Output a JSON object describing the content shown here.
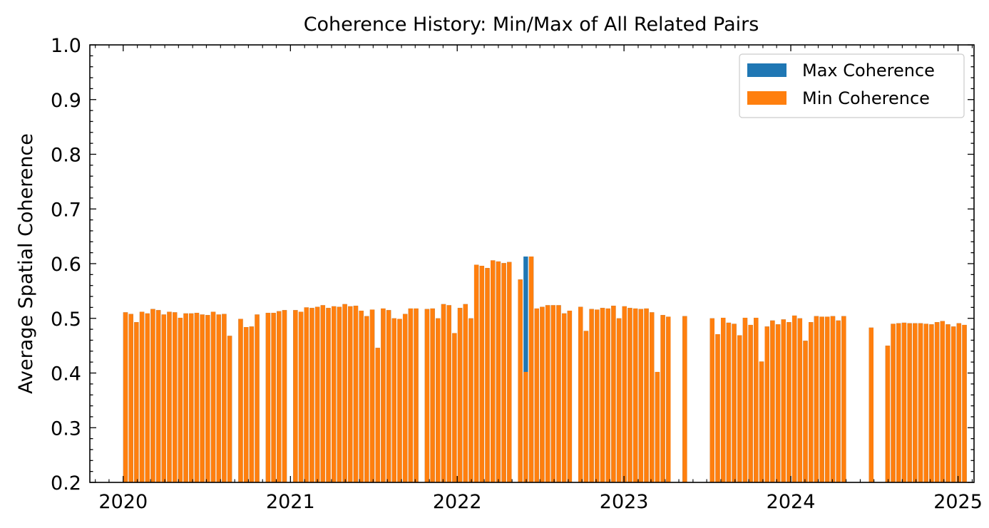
{
  "chart_data": {
    "type": "bar",
    "title": "Coherence History: Min/Max of All Related Pairs",
    "xlabel": "",
    "ylabel": "Average Spatial Coherence",
    "ylim": [
      0.2,
      1.0
    ],
    "xlim": [
      "2019-10-20",
      "2025-02-05"
    ],
    "yticks": [
      "0.2",
      "0.3",
      "0.4",
      "0.5",
      "0.6",
      "0.7",
      "0.8",
      "0.9",
      "1.0"
    ],
    "xticks": [
      {
        "label": "2020",
        "date": "2020-01-01"
      },
      {
        "label": "2021",
        "date": "2021-01-01"
      },
      {
        "label": "2022",
        "date": "2022-01-01"
      },
      {
        "label": "2023",
        "date": "2023-01-01"
      },
      {
        "label": "2024",
        "date": "2024-01-01"
      },
      {
        "label": "2025",
        "date": "2025-01-01"
      }
    ],
    "grid": false,
    "legend_position": "top-right",
    "series": [
      {
        "name": "Max Coherence",
        "color": "#1f77b4",
        "points": [
          [
            "2020-01-06",
            0.511
          ],
          [
            "2020-01-18",
            0.508
          ],
          [
            "2020-01-30",
            0.493
          ],
          [
            "2020-02-11",
            0.512
          ],
          [
            "2020-02-23",
            0.509
          ],
          [
            "2020-03-06",
            0.517
          ],
          [
            "2020-03-18",
            0.515
          ],
          [
            "2020-03-30",
            0.507
          ],
          [
            "2020-04-11",
            0.512
          ],
          [
            "2020-04-23",
            0.511
          ],
          [
            "2020-05-05",
            0.501
          ],
          [
            "2020-05-17",
            0.509
          ],
          [
            "2020-05-29",
            0.509
          ],
          [
            "2020-06-10",
            0.51
          ],
          [
            "2020-06-22",
            0.507
          ],
          [
            "2020-07-04",
            0.506
          ],
          [
            "2020-07-16",
            0.512
          ],
          [
            "2020-07-28",
            0.507
          ],
          [
            "2020-08-09",
            0.508
          ],
          [
            "2020-08-21",
            0.468
          ],
          [
            "2020-09-14",
            0.499
          ],
          [
            "2020-09-26",
            0.484
          ],
          [
            "2020-10-08",
            0.485
          ],
          [
            "2020-10-20",
            0.507
          ],
          [
            "2020-11-13",
            0.51
          ],
          [
            "2020-11-25",
            0.51
          ],
          [
            "2020-12-07",
            0.513
          ],
          [
            "2020-12-19",
            0.515
          ],
          [
            "2021-01-12",
            0.515
          ],
          [
            "2021-01-24",
            0.512
          ],
          [
            "2021-02-05",
            0.52
          ],
          [
            "2021-02-17",
            0.519
          ],
          [
            "2021-03-01",
            0.521
          ],
          [
            "2021-03-13",
            0.524
          ],
          [
            "2021-03-25",
            0.519
          ],
          [
            "2021-04-06",
            0.522
          ],
          [
            "2021-04-18",
            0.521
          ],
          [
            "2021-04-30",
            0.526
          ],
          [
            "2021-05-12",
            0.522
          ],
          [
            "2021-05-24",
            0.523
          ],
          [
            "2021-06-05",
            0.514
          ],
          [
            "2021-06-17",
            0.504
          ],
          [
            "2021-06-29",
            0.516
          ],
          [
            "2021-07-11",
            0.446
          ],
          [
            "2021-07-23",
            0.518
          ],
          [
            "2021-08-04",
            0.515
          ],
          [
            "2021-08-16",
            0.5
          ],
          [
            "2021-08-28",
            0.499
          ],
          [
            "2021-09-09",
            0.508
          ],
          [
            "2021-09-21",
            0.518
          ],
          [
            "2021-10-03",
            0.518
          ],
          [
            "2021-10-27",
            0.517
          ],
          [
            "2021-11-08",
            0.518
          ],
          [
            "2021-11-20",
            0.5
          ],
          [
            "2021-12-02",
            0.526
          ],
          [
            "2021-12-14",
            0.524
          ],
          [
            "2021-12-26",
            0.473
          ],
          [
            "2022-01-07",
            0.519
          ],
          [
            "2022-01-19",
            0.526
          ],
          [
            "2022-01-31",
            0.5
          ],
          [
            "2022-02-12",
            0.598
          ],
          [
            "2022-02-24",
            0.596
          ],
          [
            "2022-03-08",
            0.592
          ],
          [
            "2022-03-20",
            0.606
          ],
          [
            "2022-04-01",
            0.604
          ],
          [
            "2022-04-13",
            0.601
          ],
          [
            "2022-04-25",
            0.603
          ],
          [
            "2022-05-19",
            0.571
          ],
          [
            "2022-05-31",
            0.613
          ],
          [
            "2022-06-12",
            0.613
          ],
          [
            "2022-06-24",
            0.518
          ],
          [
            "2022-07-06",
            0.521
          ],
          [
            "2022-07-18",
            0.524
          ],
          [
            "2022-07-30",
            0.524
          ],
          [
            "2022-08-11",
            0.524
          ],
          [
            "2022-08-23",
            0.509
          ],
          [
            "2022-09-04",
            0.514
          ],
          [
            "2022-09-28",
            0.521
          ],
          [
            "2022-10-10",
            0.477
          ],
          [
            "2022-10-22",
            0.517
          ],
          [
            "2022-11-03",
            0.516
          ],
          [
            "2022-11-15",
            0.519
          ],
          [
            "2022-11-27",
            0.518
          ],
          [
            "2022-12-09",
            0.523
          ],
          [
            "2022-12-21",
            0.5
          ],
          [
            "2023-01-02",
            0.522
          ],
          [
            "2023-01-14",
            0.519
          ],
          [
            "2023-01-26",
            0.518
          ],
          [
            "2023-02-07",
            0.517
          ],
          [
            "2023-02-19",
            0.518
          ],
          [
            "2023-03-03",
            0.511
          ],
          [
            "2023-03-15",
            0.402
          ],
          [
            "2023-03-27",
            0.506
          ],
          [
            "2023-04-08",
            0.503
          ],
          [
            "2023-05-14",
            0.504
          ],
          [
            "2023-07-13",
            0.5
          ],
          [
            "2023-07-25",
            0.471
          ],
          [
            "2023-08-06",
            0.501
          ],
          [
            "2023-08-18",
            0.492
          ],
          [
            "2023-08-30",
            0.49
          ],
          [
            "2023-09-11",
            0.469
          ],
          [
            "2023-09-23",
            0.501
          ],
          [
            "2023-10-05",
            0.488
          ],
          [
            "2023-10-17",
            0.501
          ],
          [
            "2023-10-29",
            0.421
          ],
          [
            "2023-11-10",
            0.485
          ],
          [
            "2023-11-22",
            0.496
          ],
          [
            "2023-12-04",
            0.489
          ],
          [
            "2023-12-16",
            0.498
          ],
          [
            "2023-12-28",
            0.493
          ],
          [
            "2024-01-09",
            0.505
          ],
          [
            "2024-01-21",
            0.5
          ],
          [
            "2024-02-02",
            0.459
          ],
          [
            "2024-02-14",
            0.493
          ],
          [
            "2024-02-26",
            0.504
          ],
          [
            "2024-03-09",
            0.503
          ],
          [
            "2024-03-21",
            0.503
          ],
          [
            "2024-04-02",
            0.504
          ],
          [
            "2024-04-14",
            0.496
          ],
          [
            "2024-04-26",
            0.504
          ],
          [
            "2024-06-25",
            0.483
          ],
          [
            "2024-07-31",
            0.45
          ],
          [
            "2024-08-12",
            0.49
          ],
          [
            "2024-08-24",
            0.491
          ],
          [
            "2024-09-05",
            0.492
          ],
          [
            "2024-09-17",
            0.491
          ],
          [
            "2024-09-29",
            0.491
          ],
          [
            "2024-10-11",
            0.491
          ],
          [
            "2024-10-23",
            0.49
          ],
          [
            "2024-11-04",
            0.489
          ],
          [
            "2024-11-16",
            0.493
          ],
          [
            "2024-11-28",
            0.495
          ],
          [
            "2024-12-10",
            0.489
          ],
          [
            "2024-12-22",
            0.485
          ],
          [
            "2025-01-03",
            0.491
          ],
          [
            "2025-01-15",
            0.488
          ]
        ]
      },
      {
        "name": "Min Coherence",
        "color": "#ff7f0e",
        "points": [
          [
            "2020-01-06",
            0.511
          ],
          [
            "2020-01-18",
            0.508
          ],
          [
            "2020-01-30",
            0.493
          ],
          [
            "2020-02-11",
            0.512
          ],
          [
            "2020-02-23",
            0.509
          ],
          [
            "2020-03-06",
            0.517
          ],
          [
            "2020-03-18",
            0.515
          ],
          [
            "2020-03-30",
            0.507
          ],
          [
            "2020-04-11",
            0.512
          ],
          [
            "2020-04-23",
            0.511
          ],
          [
            "2020-05-05",
            0.501
          ],
          [
            "2020-05-17",
            0.509
          ],
          [
            "2020-05-29",
            0.509
          ],
          [
            "2020-06-10",
            0.51
          ],
          [
            "2020-06-22",
            0.507
          ],
          [
            "2020-07-04",
            0.506
          ],
          [
            "2020-07-16",
            0.512
          ],
          [
            "2020-07-28",
            0.507
          ],
          [
            "2020-08-09",
            0.508
          ],
          [
            "2020-08-21",
            0.468
          ],
          [
            "2020-09-14",
            0.499
          ],
          [
            "2020-09-26",
            0.484
          ],
          [
            "2020-10-08",
            0.485
          ],
          [
            "2020-10-20",
            0.507
          ],
          [
            "2020-11-13",
            0.51
          ],
          [
            "2020-11-25",
            0.51
          ],
          [
            "2020-12-07",
            0.513
          ],
          [
            "2020-12-19",
            0.515
          ],
          [
            "2021-01-12",
            0.515
          ],
          [
            "2021-01-24",
            0.512
          ],
          [
            "2021-02-05",
            0.52
          ],
          [
            "2021-02-17",
            0.519
          ],
          [
            "2021-03-01",
            0.521
          ],
          [
            "2021-03-13",
            0.524
          ],
          [
            "2021-03-25",
            0.519
          ],
          [
            "2021-04-06",
            0.522
          ],
          [
            "2021-04-18",
            0.521
          ],
          [
            "2021-04-30",
            0.526
          ],
          [
            "2021-05-12",
            0.522
          ],
          [
            "2021-05-24",
            0.523
          ],
          [
            "2021-06-05",
            0.514
          ],
          [
            "2021-06-17",
            0.504
          ],
          [
            "2021-06-29",
            0.516
          ],
          [
            "2021-07-11",
            0.446
          ],
          [
            "2021-07-23",
            0.518
          ],
          [
            "2021-08-04",
            0.515
          ],
          [
            "2021-08-16",
            0.5
          ],
          [
            "2021-08-28",
            0.499
          ],
          [
            "2021-09-09",
            0.508
          ],
          [
            "2021-09-21",
            0.518
          ],
          [
            "2021-10-03",
            0.518
          ],
          [
            "2021-10-27",
            0.517
          ],
          [
            "2021-11-08",
            0.518
          ],
          [
            "2021-11-20",
            0.5
          ],
          [
            "2021-12-02",
            0.526
          ],
          [
            "2021-12-14",
            0.524
          ],
          [
            "2021-12-26",
            0.473
          ],
          [
            "2022-01-07",
            0.519
          ],
          [
            "2022-01-19",
            0.526
          ],
          [
            "2022-01-31",
            0.5
          ],
          [
            "2022-02-12",
            0.598
          ],
          [
            "2022-02-24",
            0.596
          ],
          [
            "2022-03-08",
            0.592
          ],
          [
            "2022-03-20",
            0.606
          ],
          [
            "2022-04-01",
            0.604
          ],
          [
            "2022-04-13",
            0.601
          ],
          [
            "2022-04-25",
            0.603
          ],
          [
            "2022-05-19",
            0.571
          ],
          [
            "2022-05-31",
            0.402
          ],
          [
            "2022-06-12",
            0.613
          ],
          [
            "2022-06-24",
            0.518
          ],
          [
            "2022-07-06",
            0.521
          ],
          [
            "2022-07-18",
            0.524
          ],
          [
            "2022-07-30",
            0.524
          ],
          [
            "2022-08-11",
            0.524
          ],
          [
            "2022-08-23",
            0.509
          ],
          [
            "2022-09-04",
            0.514
          ],
          [
            "2022-09-28",
            0.521
          ],
          [
            "2022-10-10",
            0.477
          ],
          [
            "2022-10-22",
            0.517
          ],
          [
            "2022-11-03",
            0.516
          ],
          [
            "2022-11-15",
            0.519
          ],
          [
            "2022-11-27",
            0.518
          ],
          [
            "2022-12-09",
            0.523
          ],
          [
            "2022-12-21",
            0.5
          ],
          [
            "2023-01-02",
            0.522
          ],
          [
            "2023-01-14",
            0.519
          ],
          [
            "2023-01-26",
            0.518
          ],
          [
            "2023-02-07",
            0.517
          ],
          [
            "2023-02-19",
            0.518
          ],
          [
            "2023-03-03",
            0.511
          ],
          [
            "2023-03-15",
            0.402
          ],
          [
            "2023-03-27",
            0.506
          ],
          [
            "2023-04-08",
            0.503
          ],
          [
            "2023-05-14",
            0.504
          ],
          [
            "2023-07-13",
            0.5
          ],
          [
            "2023-07-25",
            0.471
          ],
          [
            "2023-08-06",
            0.501
          ],
          [
            "2023-08-18",
            0.492
          ],
          [
            "2023-08-30",
            0.49
          ],
          [
            "2023-09-11",
            0.469
          ],
          [
            "2023-09-23",
            0.501
          ],
          [
            "2023-10-05",
            0.488
          ],
          [
            "2023-10-17",
            0.501
          ],
          [
            "2023-10-29",
            0.421
          ],
          [
            "2023-11-10",
            0.485
          ],
          [
            "2023-11-22",
            0.496
          ],
          [
            "2023-12-04",
            0.489
          ],
          [
            "2023-12-16",
            0.498
          ],
          [
            "2023-12-28",
            0.493
          ],
          [
            "2024-01-09",
            0.505
          ],
          [
            "2024-01-21",
            0.5
          ],
          [
            "2024-02-02",
            0.459
          ],
          [
            "2024-02-14",
            0.493
          ],
          [
            "2024-02-26",
            0.504
          ],
          [
            "2024-03-09",
            0.503
          ],
          [
            "2024-03-21",
            0.503
          ],
          [
            "2024-04-02",
            0.504
          ],
          [
            "2024-04-14",
            0.496
          ],
          [
            "2024-04-26",
            0.504
          ],
          [
            "2024-06-25",
            0.483
          ],
          [
            "2024-07-31",
            0.45
          ],
          [
            "2024-08-12",
            0.49
          ],
          [
            "2024-08-24",
            0.491
          ],
          [
            "2024-09-05",
            0.492
          ],
          [
            "2024-09-17",
            0.491
          ],
          [
            "2024-09-29",
            0.491
          ],
          [
            "2024-10-11",
            0.491
          ],
          [
            "2024-10-23",
            0.49
          ],
          [
            "2024-11-04",
            0.489
          ],
          [
            "2024-11-16",
            0.493
          ],
          [
            "2024-11-28",
            0.495
          ],
          [
            "2024-12-10",
            0.489
          ],
          [
            "2024-12-22",
            0.485
          ],
          [
            "2025-01-03",
            0.491
          ],
          [
            "2025-01-15",
            0.488
          ]
        ]
      }
    ]
  }
}
